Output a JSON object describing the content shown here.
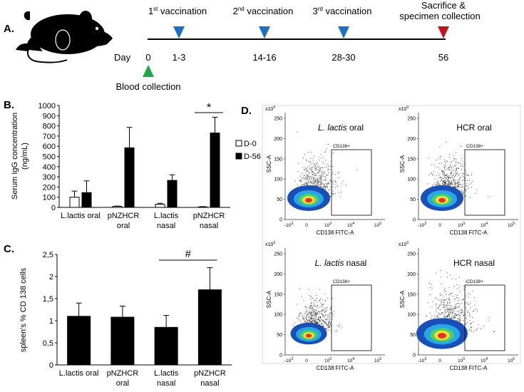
{
  "panel_labels": {
    "a": "A.",
    "b": "B.",
    "c": "C.",
    "d": "D."
  },
  "timeline": {
    "day_label": "Day",
    "blood_collection": "Blood collection",
    "events": [
      {
        "ord": "1",
        "sup": "st",
        "rest": " vaccination",
        "days": "1-3",
        "color": "#1f6fc4"
      },
      {
        "ord": "2",
        "sup": "nd",
        "rest": " vaccination",
        "days": "14-16",
        "color": "#1f6fc4"
      },
      {
        "ord": "3",
        "sup": "rd",
        "rest": " vaccination",
        "days": "28-30",
        "color": "#1f6fc4"
      },
      {
        "line1": "Sacrifice &",
        "line2": "specimen collection",
        "days": "56",
        "color": "#c0141c"
      }
    ],
    "start_day": "0",
    "start_color": "#1ea84a"
  },
  "chart_data": [
    {
      "id": "B",
      "type": "bar",
      "ylabel_line1": "Serum IgG concentration",
      "ylabel_line2": "(ng/mL)",
      "ylim": [
        0,
        1000
      ],
      "ytick_step": 100,
      "categories": [
        [
          "L.lactis oral"
        ],
        [
          "pNZHCR",
          "oral"
        ],
        [
          "L.lactis",
          "nasal"
        ],
        [
          "pNZHCR",
          "nasal"
        ]
      ],
      "series": [
        {
          "name": "D-0",
          "fill": "#ffffff",
          "values": [
            100,
            10,
            30,
            5
          ],
          "errors": [
            60,
            3,
            10,
            3
          ]
        },
        {
          "name": "D-56",
          "fill": "#000000",
          "values": [
            145,
            585,
            265,
            730
          ],
          "errors": [
            115,
            200,
            55,
            155
          ]
        }
      ],
      "significance": {
        "label": "*",
        "between_category": 3
      }
    },
    {
      "id": "C",
      "type": "bar",
      "ylabel": "spleen's % CD 138 cells",
      "ylim": [
        0,
        2.5
      ],
      "yticks": [
        "0",
        "0,5",
        "1",
        "1,5",
        "2",
        "2,5"
      ],
      "ytick_values": [
        0,
        0.5,
        1,
        1.5,
        2,
        2.5
      ],
      "categories": [
        [
          "L.lactis oral"
        ],
        [
          "pNZHCR",
          "oral"
        ],
        [
          "L.lactis",
          "nasal"
        ],
        [
          "pNZHCR",
          "nasal"
        ]
      ],
      "series": [
        {
          "name": "CD138",
          "fill": "#000000",
          "values": [
            1.1,
            1.08,
            0.85,
            1.7
          ],
          "errors": [
            0.3,
            0.25,
            0.27,
            0.5
          ]
        }
      ],
      "significance": {
        "label": "#",
        "from_category": 2,
        "to_category": 3
      }
    }
  ],
  "flow_plots": {
    "y_axis_label": "SSC-A",
    "x_axis_label": "CD138 FITC-A",
    "y_exponent": "x10",
    "y_exponent_sup": "3",
    "y_ticks": [
      "250",
      "200",
      "150",
      "100",
      "50",
      "0"
    ],
    "x_ticks": [
      "-10",
      "0",
      "10",
      "10",
      "10"
    ],
    "x_tick_sups": [
      "3",
      "",
      "3",
      "4",
      "5"
    ],
    "gate_label": "CD138+",
    "plots": [
      {
        "title": "L. lactis oral",
        "italic_part": "L. lactis",
        "plain_part": " oral"
      },
      {
        "title": "HCR oral",
        "italic_part": "",
        "plain_part": "HCR oral"
      },
      {
        "title": "L. lactis nasal",
        "italic_part": "L. lactis",
        "plain_part": " nasal"
      },
      {
        "title": "HCR nasal",
        "italic_part": "",
        "plain_part": "HCR nasal"
      }
    ]
  }
}
